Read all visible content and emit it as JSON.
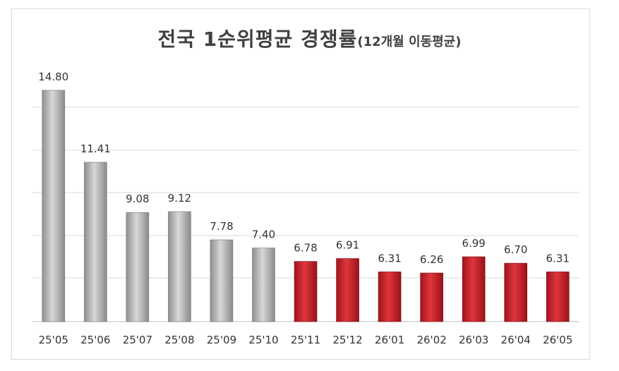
{
  "chart_data": {
    "type": "bar",
    "title": "전국 1순위평균 경쟁률",
    "subtitle": "(12개월 이동평균)",
    "categories": [
      "25'05",
      "25'06",
      "25'07",
      "25'08",
      "25'09",
      "25'10",
      "25'11",
      "25'12",
      "26'01",
      "26'02",
      "26'03",
      "26'04",
      "26'05"
    ],
    "values": [
      14.8,
      11.41,
      9.08,
      9.12,
      7.78,
      7.4,
      6.78,
      6.91,
      6.31,
      6.26,
      6.99,
      6.7,
      6.31
    ],
    "value_labels": [
      "14.80",
      "11.41",
      "9.08",
      "9.12",
      "7.78",
      "7.40",
      "6.78",
      "6.91",
      "6.31",
      "6.26",
      "6.99",
      "6.70",
      "6.31"
    ],
    "bar_colors": [
      "#b0b0b0",
      "#b0b0b0",
      "#b0b0b0",
      "#b0b0b0",
      "#b0b0b0",
      "#b0b0b0",
      "#c0202a",
      "#c0202a",
      "#c0202a",
      "#c0202a",
      "#c0202a",
      "#c0202a",
      "#c0202a"
    ],
    "xlabel": "",
    "ylabel": "",
    "grid": true,
    "legend": "none"
  }
}
